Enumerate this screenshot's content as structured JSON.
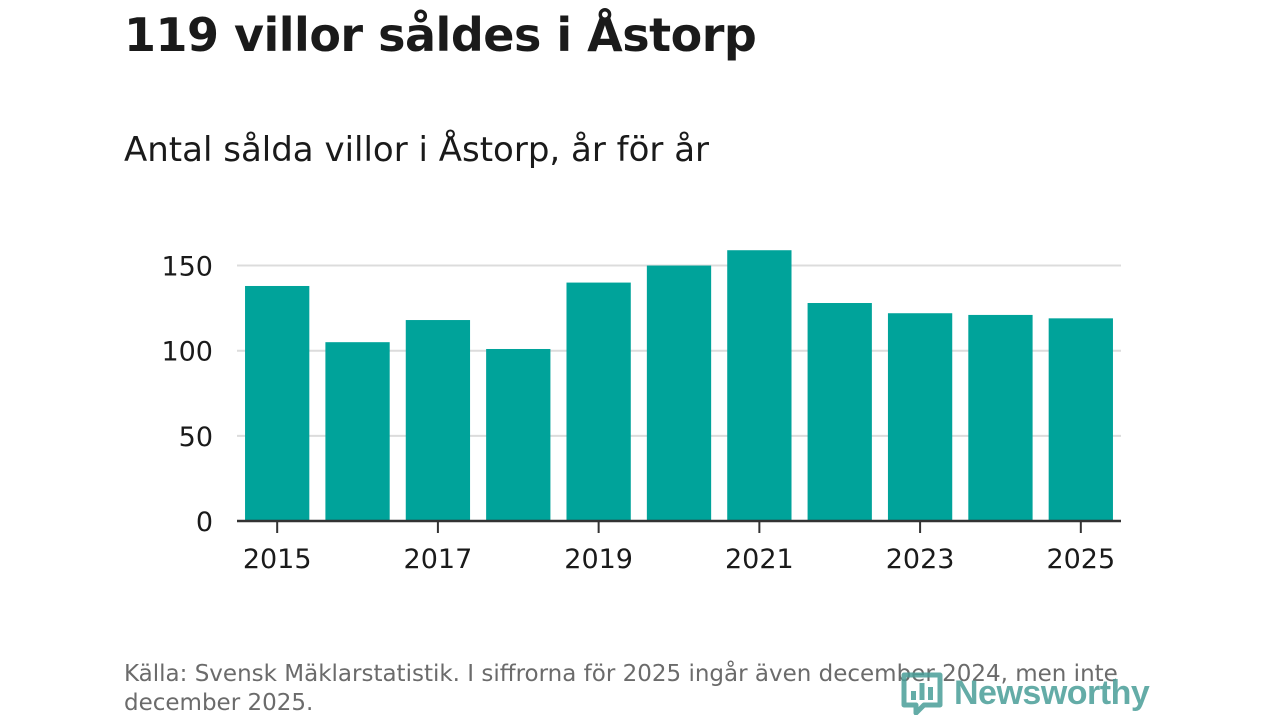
{
  "header": {
    "title": "119 villor såldes i Åstorp",
    "subtitle": "Antal sålda villor i Åstorp, år för år"
  },
  "footer": {
    "source": "Källa: Svensk Mäklarstatistik. I siffrorna för 2025 ingår även december 2024, men inte december 2025.",
    "brand": "Newsworthy"
  },
  "colors": {
    "bar": "#00a39a",
    "grid": "#dcdcdc",
    "axis": "#333333",
    "text": "#1a1a1a",
    "brand": "#4a9e98"
  },
  "chart_data": {
    "type": "bar",
    "title": "Antal sålda villor i Åstorp, år för år",
    "xlabel": "",
    "ylabel": "",
    "categories": [
      "2015",
      "2016",
      "2017",
      "2018",
      "2019",
      "2020",
      "2021",
      "2022",
      "2023",
      "2024",
      "2025"
    ],
    "values": [
      138,
      105,
      118,
      101,
      140,
      150,
      159,
      128,
      122,
      121,
      119
    ],
    "ylim": [
      0,
      165
    ],
    "y_ticks": [
      0,
      50,
      100,
      150
    ],
    "x_tick_labels": [
      "2015",
      "2017",
      "2019",
      "2021",
      "2023",
      "2025"
    ],
    "grid": true,
    "legend": false
  }
}
